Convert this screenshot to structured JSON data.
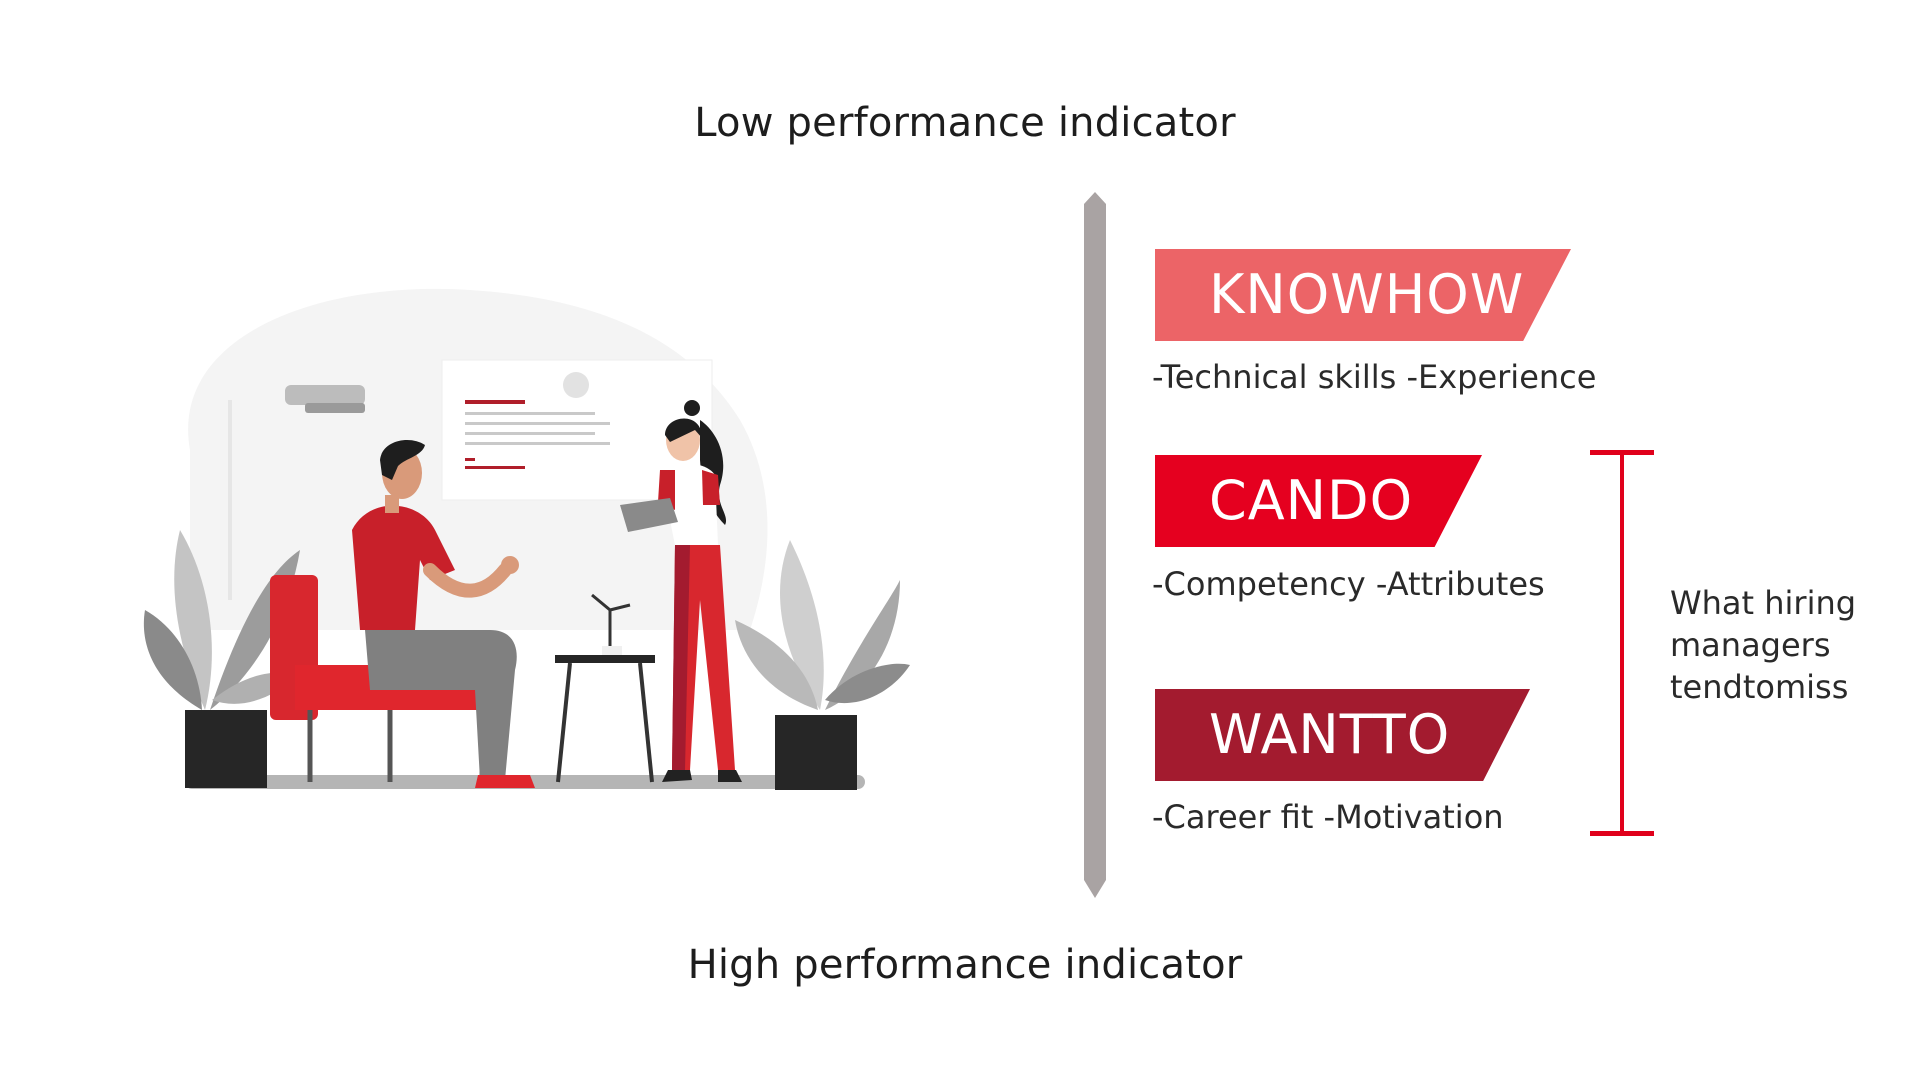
{
  "headings": {
    "top": "Low performance indicator",
    "bottom": "High performance indicator"
  },
  "banners": [
    {
      "label": "KNOWHOW",
      "description": "-Technical skills -Experience",
      "color": "#ec6467"
    },
    {
      "label": "CANDO",
      "description": "-Competency -Attributes",
      "color": "#e5001f"
    },
    {
      "label": "WANTTO",
      "description": "-Career fit -Motivation",
      "color": "#a31b2f"
    }
  ],
  "bracket": {
    "note_lines": [
      "What hiring",
      "managers",
      "tendtomiss"
    ],
    "color": "#e0001b"
  },
  "colors": {
    "axis": "#a9a3a3",
    "red": "#e1262d",
    "dark_red": "#b01e2a"
  }
}
